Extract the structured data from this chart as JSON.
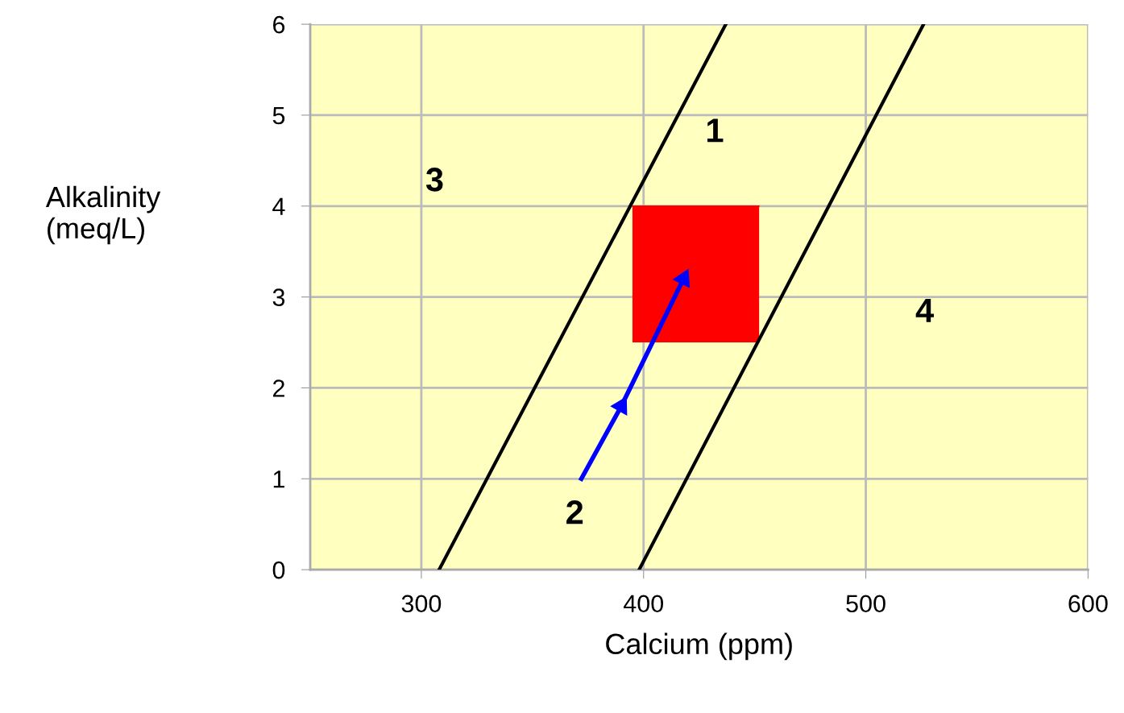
{
  "chart_data": {
    "type": "line",
    "xlabel": "Calcium (ppm)",
    "ylabel": "Alkalinity\n(meq/L)",
    "xlim": [
      250,
      600
    ],
    "xticks": [
      300,
      400,
      500,
      600
    ],
    "ylim": [
      0,
      6
    ],
    "yticks": [
      0,
      1,
      2,
      3,
      4,
      5,
      6
    ],
    "grid": true,
    "series": [
      {
        "color": "#000000",
        "x": [
          308,
          437
        ],
        "values": [
          0,
          6
        ]
      },
      {
        "color": "#000000",
        "x": [
          398,
          526
        ],
        "values": [
          0,
          6
        ]
      },
      {
        "color": "#ff0000",
        "x": [
          395,
          452
        ],
        "values": [
          4,
          4
        ],
        "lower": [
          2.5,
          2.5
        ],
        "upper": [
          4,
          4
        ]
      },
      {
        "marker": "triangle",
        "color": "#0000ff",
        "x": [
          372,
          390,
          418
        ],
        "values": [
          1,
          1.8,
          3.2
        ]
      }
    ],
    "annotations": [
      "1",
      "2",
      "3",
      "4"
    ]
  }
}
